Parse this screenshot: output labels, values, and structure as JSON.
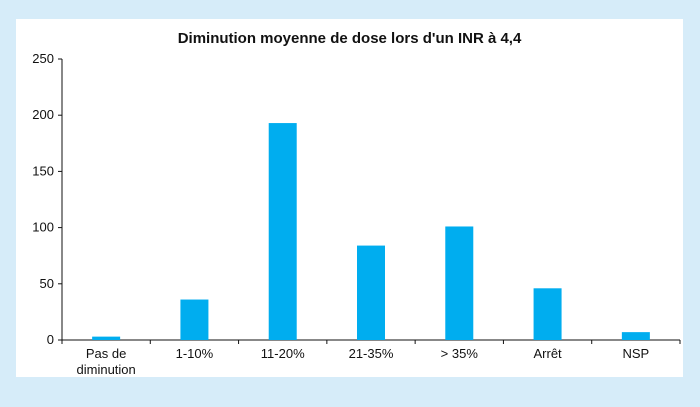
{
  "chart_data": {
    "type": "bar",
    "title": "Diminution moyenne de dose lors d'un INR à 4,4",
    "xlabel": "",
    "ylabel": "",
    "categories": [
      [
        "Pas de",
        "diminution"
      ],
      [
        "1-10%"
      ],
      [
        "11-20%"
      ],
      [
        "21-35%"
      ],
      [
        "> 35%"
      ],
      [
        "Arrêt"
      ],
      [
        "NSP"
      ]
    ],
    "values": [
      3,
      36,
      193,
      84,
      101,
      46,
      7
    ],
    "ylim": [
      0,
      250
    ],
    "yticks": [
      0,
      50,
      100,
      150,
      200,
      250
    ],
    "grid": false,
    "bar_color": "#00adef",
    "axis_color": "#111111",
    "background_color": "#d6ecf9",
    "panel_color": "#ffffff"
  }
}
